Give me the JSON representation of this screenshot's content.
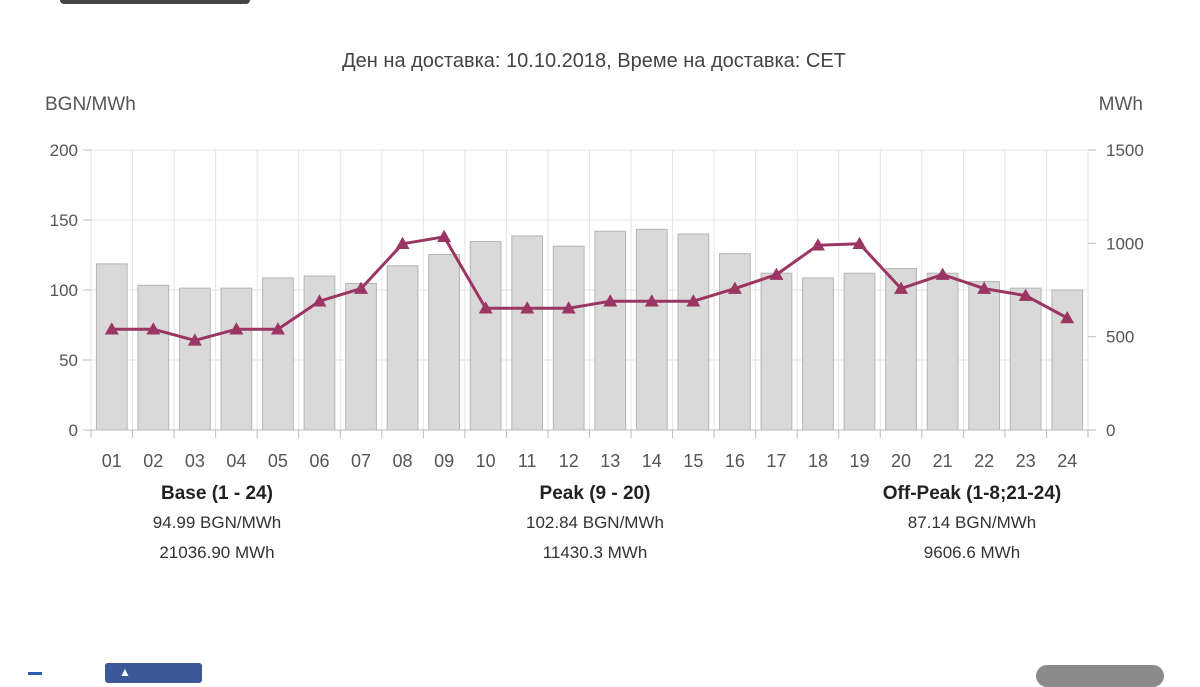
{
  "chart_data": {
    "type": "bar+line",
    "title": "Ден на доставка: 10.10.2018, Време на доставка: CET",
    "categories": [
      "01",
      "02",
      "03",
      "04",
      "05",
      "06",
      "07",
      "08",
      "09",
      "10",
      "11",
      "12",
      "13",
      "14",
      "15",
      "16",
      "17",
      "18",
      "19",
      "20",
      "21",
      "22",
      "23",
      "24"
    ],
    "left_axis": {
      "label": "BGN/MWh",
      "min": 0,
      "max": 200,
      "ticks": [
        0,
        50,
        100,
        150,
        200
      ]
    },
    "right_axis": {
      "label": "MWh",
      "min": 0,
      "max": 1500,
      "ticks": [
        0,
        500,
        1000,
        1500
      ]
    },
    "grid": true,
    "series": [
      {
        "type": "bar",
        "axis": "right",
        "color": "#d9d9d9",
        "values": [
          890,
          775,
          760,
          760,
          815,
          825,
          785,
          880,
          940,
          1010,
          1040,
          985,
          1065,
          1075,
          1050,
          945,
          840,
          815,
          840,
          865,
          840,
          795,
          760,
          750
        ]
      },
      {
        "type": "line",
        "axis": "left",
        "color": "#9b3563",
        "marker": "triangle",
        "values": [
          72,
          72,
          64,
          72,
          72,
          92,
          101,
          133,
          138,
          87,
          87,
          87,
          92,
          92,
          92,
          101,
          111,
          132,
          133,
          101,
          111,
          101,
          96,
          80
        ]
      }
    ]
  },
  "summaries": {
    "base": {
      "title": "Base (1 - 24)",
      "price": "94.99 BGN/MWh",
      "volume": "21036.90 MWh"
    },
    "peak": {
      "title": "Peak (9 - 20)",
      "price": "102.84 BGN/MWh",
      "volume": "11430.3 MWh"
    },
    "offpeak": {
      "title": "Off-Peak (1-8;21-24)",
      "price": "87.14 BGN/MWh",
      "volume": "9606.6 MWh"
    }
  },
  "footer": {
    "fb_icon": "thumbs-up-icon",
    "fb_color": "#3b5998"
  }
}
